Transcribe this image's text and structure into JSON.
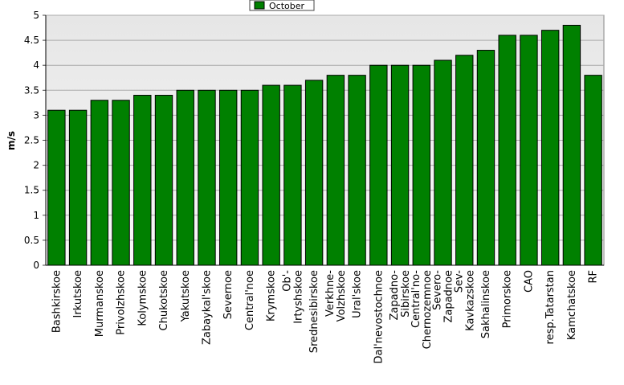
{
  "chart_data": {
    "type": "bar",
    "y_label": "m/s",
    "categories": [
      "Bashkirskoe",
      "Irkutskoe",
      "Murmanskoe",
      "Privolzhskoe",
      "Kolymskoe",
      "Chukotskoe",
      "Yakutskoe",
      "Zabaykal'skoe",
      "Severnoe",
      "Central'noe",
      "Krymskoe",
      "Ob'-\nIrtyshskoe",
      "Srednesibirskoe",
      "Verkhne-\nVolzhskoe",
      "Ural'skoe",
      "Dal'nevostochnoe",
      "Zapadno-\nSibirskoe",
      "Central'no-\nChernozemnoe",
      "Severo-\nZapadnoe",
      "Sev-\nKavkazskoe",
      "Sakhalinskoe",
      "Primorskoe",
      "CAO",
      "resp.Tatarstan",
      "Kamchatskoe",
      "RF"
    ],
    "series": [
      {
        "name": "October",
        "color": "#008000",
        "values": [
          3.1,
          3.1,
          3.3,
          3.3,
          3.4,
          3.4,
          3.5,
          3.5,
          3.5,
          3.5,
          3.6,
          3.6,
          3.7,
          3.8,
          3.8,
          4.0,
          4.0,
          4.0,
          4.1,
          4.2,
          4.3,
          4.6,
          4.6,
          4.7,
          4.8,
          3.8
        ]
      }
    ],
    "ylim": [
      0,
      5
    ],
    "yticks": [
      0,
      0.5,
      1,
      1.5,
      2,
      2.5,
      3,
      3.5,
      4,
      4.5,
      5
    ],
    "grid": true,
    "legend": "top"
  }
}
